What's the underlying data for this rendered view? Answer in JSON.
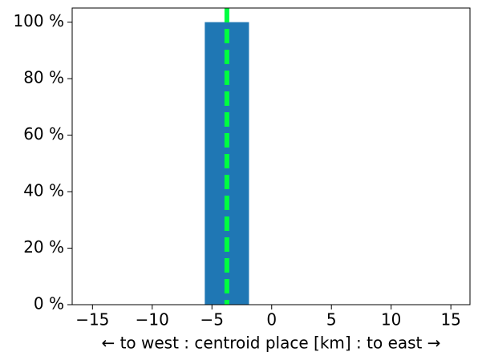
{
  "chart_data": {
    "type": "histogram",
    "xlabel": "← to west : centroid place [km] : to east →",
    "bins": [
      -5.6,
      -1.9
    ],
    "values": [
      100
    ],
    "color": "#1f77b4",
    "mean_line": {
      "x": -3.75,
      "color": "#00ff40",
      "dashed": true
    },
    "xlim": [
      -16.7,
      16.6
    ],
    "xticks": [
      {
        "value": -15,
        "label": "−15"
      },
      {
        "value": -10,
        "label": "−10"
      },
      {
        "value": -5,
        "label": "−5"
      },
      0,
      5,
      10,
      15
    ],
    "ylim": [
      0,
      105
    ],
    "yticks": [
      {
        "value": 0,
        "label": "0 %"
      },
      {
        "value": 20,
        "label": "20 %"
      },
      {
        "value": 40,
        "label": "40 %"
      },
      {
        "value": 60,
        "label": "60 %"
      },
      {
        "value": 80,
        "label": "80 %"
      },
      {
        "value": 100,
        "label": "100 %"
      }
    ],
    "grid": false
  }
}
